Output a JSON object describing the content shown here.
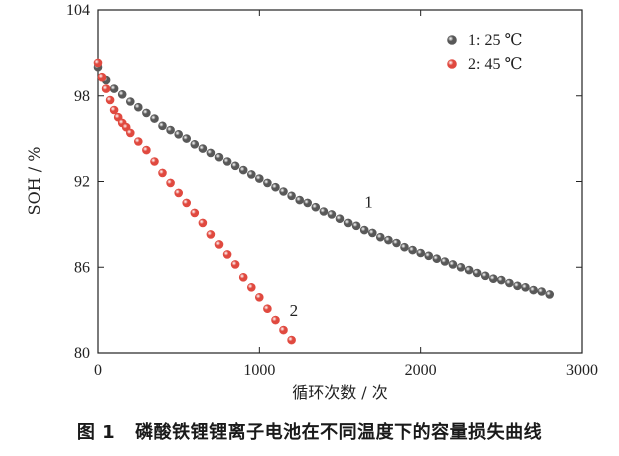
{
  "chart_data": {
    "type": "scatter",
    "title": "",
    "xlabel": "循环次数 / 次",
    "ylabel": "SOH / %",
    "xlim": [
      0,
      3000
    ],
    "ylim": [
      80,
      104
    ],
    "xticks": [
      "0",
      "1000",
      "2000",
      "3000"
    ],
    "yticks": [
      "80",
      "86",
      "92",
      "98",
      "104"
    ],
    "xtick_values": [
      0,
      1000,
      2000,
      3000
    ],
    "ytick_values": [
      80,
      86,
      92,
      98,
      104
    ],
    "grid": false,
    "legend_position": "top-right",
    "series": [
      {
        "name": "1: 25 ℃",
        "label": "1",
        "color": "#585858",
        "x": [
          0,
          50,
          100,
          150,
          200,
          250,
          300,
          350,
          400,
          450,
          500,
          550,
          600,
          650,
          700,
          750,
          800,
          850,
          900,
          950,
          1000,
          1050,
          1100,
          1150,
          1200,
          1250,
          1300,
          1350,
          1400,
          1450,
          1500,
          1550,
          1600,
          1650,
          1700,
          1750,
          1800,
          1850,
          1900,
          1950,
          2000,
          2050,
          2100,
          2150,
          2200,
          2250,
          2300,
          2350,
          2400,
          2450,
          2500,
          2550,
          2600,
          2650,
          2700,
          2750,
          2800
        ],
        "y": [
          100.0,
          99.1,
          98.5,
          98.1,
          97.6,
          97.2,
          96.8,
          96.4,
          95.9,
          95.6,
          95.3,
          95.0,
          94.6,
          94.3,
          94.0,
          93.7,
          93.4,
          93.1,
          92.8,
          92.5,
          92.2,
          91.9,
          91.6,
          91.3,
          91.0,
          90.7,
          90.5,
          90.2,
          89.9,
          89.7,
          89.4,
          89.1,
          88.9,
          88.6,
          88.4,
          88.1,
          87.9,
          87.7,
          87.4,
          87.2,
          87.0,
          86.8,
          86.6,
          86.4,
          86.2,
          86.0,
          85.8,
          85.6,
          85.4,
          85.2,
          85.1,
          84.9,
          84.7,
          84.6,
          84.4,
          84.3,
          84.1
        ]
      },
      {
        "name": "2: 45 ℃",
        "label": "2",
        "color": "#e0493f",
        "x": [
          0,
          25,
          50,
          75,
          100,
          125,
          150,
          175,
          200,
          250,
          300,
          350,
          400,
          450,
          500,
          550,
          600,
          650,
          700,
          750,
          800,
          850,
          900,
          950,
          1000,
          1050,
          1100,
          1150,
          1200
        ],
        "y": [
          100.3,
          99.3,
          98.5,
          97.7,
          97.0,
          96.5,
          96.1,
          95.8,
          95.4,
          94.8,
          94.2,
          93.4,
          92.6,
          91.9,
          91.2,
          90.5,
          89.8,
          89.1,
          88.3,
          87.6,
          86.9,
          86.2,
          85.3,
          84.6,
          83.9,
          83.1,
          82.3,
          81.6,
          80.9
        ]
      }
    ]
  },
  "caption": {
    "figure_no": "图 1",
    "text": "磷酸铁锂锂离子电池在不同温度下的容量损失曲线"
  }
}
